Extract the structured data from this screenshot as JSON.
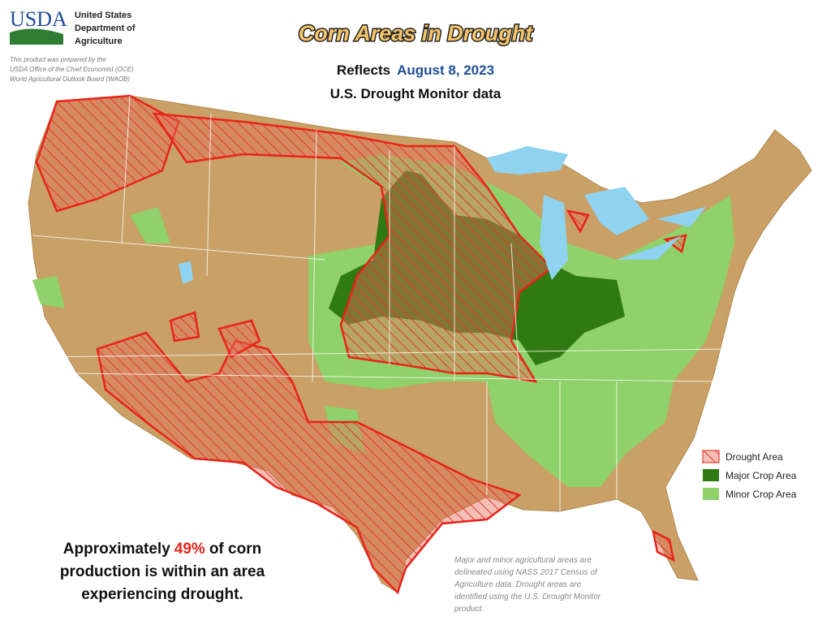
{
  "header": {
    "agency_abbr": "USDA",
    "agency_name": [
      "United States",
      "Department of",
      "Agriculture"
    ],
    "credit": [
      "This product was prepared by the",
      "USDA Office of the Chief Economist (OCE)",
      "World Agricultural Outlook Board (WAOB)"
    ]
  },
  "title": "Corn Areas in Drought",
  "subtitle": {
    "prefix": "Reflects",
    "date": "August 8, 2023",
    "source": "U.S. Drought Monitor data"
  },
  "legend": [
    {
      "label": "Drought Area"
    },
    {
      "label": "Major Crop Area"
    },
    {
      "label": "Minor Crop Area"
    }
  ],
  "statement": {
    "before": "Approximately",
    "highlight": "49%",
    "after": "of corn",
    "lines": [
      "production is within an area",
      "experiencing drought."
    ]
  },
  "footnote": [
    "Major and minor agricultural areas are",
    "delineated using NASS 2017 Census of",
    "Agriculture data.  Drought areas are",
    "identified using the U.S. Drought Monitor",
    "product."
  ]
}
